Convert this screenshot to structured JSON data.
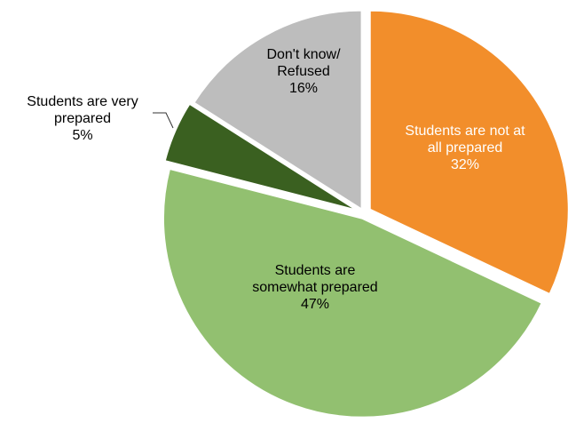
{
  "chart_data": {
    "type": "pie",
    "title": "",
    "slices": [
      {
        "label_lines": [
          "Students are not at",
          "all prepared"
        ],
        "value": 32,
        "value_label": "32%",
        "color": "#F28E2B",
        "label_color": "#FFFFFF"
      },
      {
        "label_lines": [
          "Students are",
          "somewhat prepared"
        ],
        "value": 47,
        "value_label": "47%",
        "color": "#92C070",
        "label_color": "#000000"
      },
      {
        "label_lines": [
          "Students are very",
          "prepared"
        ],
        "value": 5,
        "value_label": "5%",
        "color": "#3A6020",
        "label_color": "#000000"
      },
      {
        "label_lines": [
          "Don't know/",
          "Refused"
        ],
        "value": 16,
        "value_label": "16%",
        "color": "#BDBDBD",
        "label_color": "#000000"
      }
    ],
    "start_angle_deg": 0,
    "direction": "clockwise",
    "exploded": true,
    "legend": "none"
  }
}
